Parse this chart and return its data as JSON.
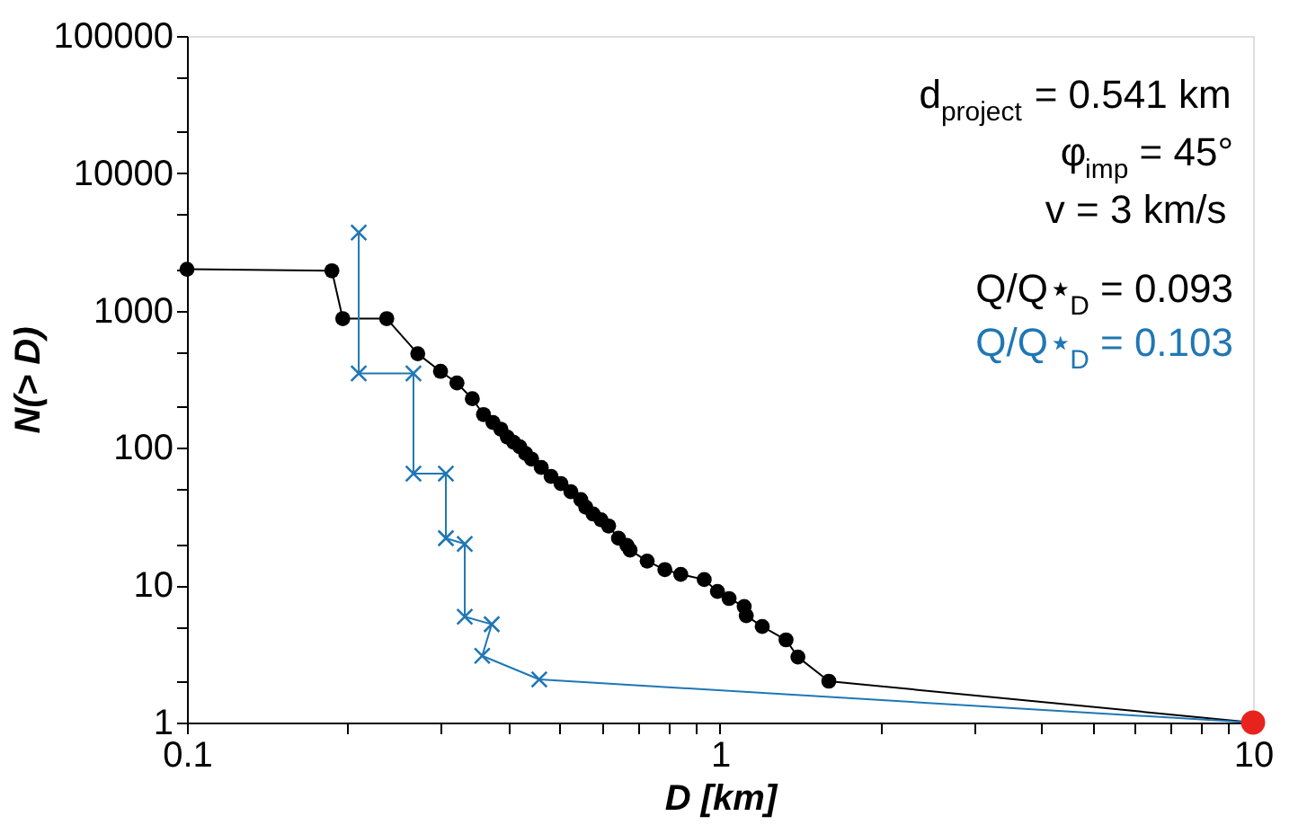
{
  "chart_data": {
    "type": "line",
    "xlabel": "D [km]",
    "ylabel": "N(> D)",
    "log": "xy",
    "grid": false,
    "xlim": [
      0.1,
      10
    ],
    "ylim": [
      1,
      100000
    ],
    "xticks": [
      0.1,
      {
        "value": 0.2,
        "label": null
      },
      {
        "value": 0.3,
        "label": null
      },
      {
        "value": 0.4,
        "label": null
      },
      {
        "value": 0.5,
        "label": null
      },
      {
        "value": 0.6,
        "label": null
      },
      {
        "value": 0.7,
        "label": null
      },
      {
        "value": 0.8,
        "label": null
      },
      {
        "value": 0.9,
        "label": null
      },
      1,
      {
        "value": 2,
        "label": null
      },
      {
        "value": 3,
        "label": null
      },
      {
        "value": 4,
        "label": null
      },
      {
        "value": 5,
        "label": null
      },
      {
        "value": 6,
        "label": null
      },
      {
        "value": 7,
        "label": null
      },
      {
        "value": 8,
        "label": null
      },
      {
        "value": 9,
        "label": null
      },
      10
    ],
    "yticks": [
      1,
      {
        "value": 2,
        "label": null
      },
      {
        "value": 5,
        "label": null
      },
      10,
      {
        "value": 20,
        "label": null
      },
      {
        "value": 50,
        "label": null
      },
      100,
      {
        "value": 200,
        "label": null
      },
      {
        "value": 500,
        "label": null
      },
      1000,
      {
        "value": 2000,
        "label": null
      },
      {
        "value": 5000,
        "label": null
      },
      10000,
      {
        "value": 20000,
        "label": null
      },
      {
        "value": 50000,
        "label": null
      },
      100000
    ],
    "annotations": [
      "d$_{project}$ = 0.541 km",
      "φ$_{imp}$ = 45°",
      "v = 3 km/s"
    ],
    "series": [
      {
        "name": "Q/Q⋆$_{D}$ = 0.093",
        "color": "#000000",
        "marker": "circle",
        "line_style": "solid",
        "x": [
          0.1,
          0.187,
          0.196,
          0.237,
          0.271,
          0.299,
          0.321,
          0.343,
          0.36,
          0.375,
          0.388,
          0.399,
          0.41,
          0.421,
          0.432,
          0.443,
          0.462,
          0.482,
          0.503,
          0.525,
          0.548,
          0.56,
          0.578,
          0.598,
          0.618,
          0.645,
          0.669,
          0.678,
          0.73,
          0.788,
          0.844,
          0.934,
          0.989,
          1.04,
          1.11,
          1.12,
          1.2,
          1.33,
          1.4,
          1.6,
          10
        ],
        "values": [
          2000,
          1950,
          874,
          874,
          485,
          361,
          297,
          228,
          175,
          153,
          137,
          120,
          110,
          102,
          91,
          83,
          72,
          62,
          55,
          48,
          42,
          37,
          33,
          30,
          27,
          22,
          19.5,
          18,
          15,
          13,
          12,
          11,
          9,
          8,
          7,
          6,
          5,
          4,
          3,
          2,
          1
        ]
      },
      {
        "name": "Q/Q⋆$_{D}$ = 0.103",
        "color": "#1f77b4",
        "marker": "cross",
        "line_style": "solid",
        "x": [
          0.21,
          0.21,
          0.266,
          0.266,
          0.306,
          0.306,
          0.332,
          0.332,
          0.373,
          0.358,
          0.458,
          10
        ],
        "values": [
          3700,
          349,
          349,
          65,
          65,
          22,
          20,
          5.9,
          5.2,
          3.06,
          2.06,
          1
        ]
      },
      {
        "type": "scatter",
        "color": "#e8231d",
        "marker": "circle",
        "x": [
          10
        ],
        "values": [
          1
        ]
      }
    ]
  }
}
